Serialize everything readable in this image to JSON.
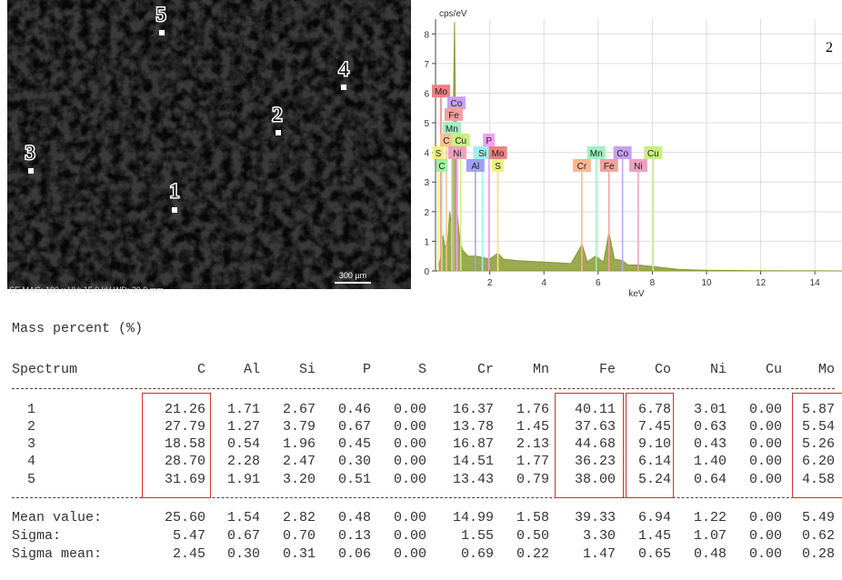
{
  "micrograph": {
    "points": [
      "5",
      "4",
      "2",
      "3",
      "1"
    ],
    "info": "SE MAG: 100 x HV: 15.0 kV WD: 30.0 mm",
    "scale_bar": "300 µm"
  },
  "chart_data": {
    "type": "area",
    "annotation": "2",
    "y_label": "cps/eV",
    "x_label": "keV",
    "x": [
      0.1,
      0.2,
      0.28,
      0.35,
      0.45,
      0.52,
      0.6,
      0.7,
      0.75,
      0.8,
      0.9,
      1.0,
      1.2,
      1.5,
      1.75,
      2.0,
      2.3,
      2.5,
      3,
      4,
      5,
      5.41,
      5.6,
      5.9,
      6.2,
      6.4,
      6.6,
      6.9,
      7.1,
      7.5,
      8,
      8.5,
      9,
      10,
      12,
      15
    ],
    "values": [
      0.1,
      0.5,
      1.2,
      0.8,
      1.0,
      2.0,
      1.5,
      8.4,
      3.5,
      2.0,
      1.0,
      0.7,
      0.5,
      0.5,
      0.45,
      0.4,
      0.6,
      0.4,
      0.35,
      0.3,
      0.25,
      0.9,
      0.3,
      0.5,
      0.3,
      1.3,
      0.4,
      0.35,
      0.2,
      0.2,
      0.15,
      0.1,
      0.05,
      0.02,
      0.01,
      0
    ],
    "color": "#8a9a30",
    "xlim": [
      0,
      15
    ],
    "ylim": [
      0,
      8.5
    ],
    "xticks": [
      2,
      4,
      6,
      8,
      10,
      12,
      14
    ],
    "yticks": [
      0,
      1,
      2,
      3,
      4,
      5,
      6,
      7,
      8
    ],
    "grid": true,
    "peak_labels": [
      {
        "label": "Mo",
        "x": 0.2,
        "y": 6.07,
        "color": "#f08080"
      },
      {
        "label": "Co",
        "x": 0.77,
        "y": 5.67,
        "color": "#c8a0f0"
      },
      {
        "label": "Fe",
        "x": 0.67,
        "y": 5.28,
        "color": "#f4a0a0"
      },
      {
        "label": "Mn",
        "x": 0.6,
        "y": 4.82,
        "color": "#a0f0c0"
      },
      {
        "label": "C",
        "x": 0.4,
        "y": 4.42,
        "color": "#f8c090"
      },
      {
        "label": "Cu",
        "x": 0.93,
        "y": 4.42,
        "color": "#c8f080"
      },
      {
        "label": "P",
        "x": 1.97,
        "y": 4.42,
        "color": "#f0a0f0"
      },
      {
        "label": "S",
        "x": 0.1,
        "y": 3.99,
        "color": "#f0f080"
      },
      {
        "label": "Ni",
        "x": 0.8,
        "y": 3.99,
        "color": "#f0a0c0"
      },
      {
        "label": "Si",
        "x": 1.73,
        "y": 3.99,
        "color": "#a0f0f0"
      },
      {
        "label": "Mo",
        "x": 2.3,
        "y": 3.99,
        "color": "#f08080"
      },
      {
        "label": "C",
        "x": 0.23,
        "y": 3.56,
        "color": "#a0f0a0"
      },
      {
        "label": "Al",
        "x": 1.47,
        "y": 3.56,
        "color": "#a0a0f0"
      },
      {
        "label": "S",
        "x": 2.3,
        "y": 3.56,
        "color": "#f0f080"
      },
      {
        "label": "Mn",
        "x": 5.93,
        "y": 3.99,
        "color": "#a0f0c0"
      },
      {
        "label": "Co",
        "x": 6.9,
        "y": 3.99,
        "color": "#c8a0f0"
      },
      {
        "label": "Cu",
        "x": 8.03,
        "y": 3.99,
        "color": "#c8f080"
      },
      {
        "label": "Cr",
        "x": 5.4,
        "y": 3.56,
        "color": "#f8b890"
      },
      {
        "label": "Fe",
        "x": 6.4,
        "y": 3.56,
        "color": "#f4a0a0"
      },
      {
        "label": "Ni",
        "x": 7.48,
        "y": 3.56,
        "color": "#f0a0c0"
      }
    ]
  },
  "table": {
    "caption": "Mass percent (%)",
    "columns": [
      "Spectrum",
      "C",
      "Al",
      "Si",
      "P",
      "S",
      "Cr",
      "Mn",
      "Fe",
      "Co",
      "Ni",
      "Cu",
      "Mo"
    ],
    "rows": [
      [
        "1",
        "21.26",
        "1.71",
        "2.67",
        "0.46",
        "0.00",
        "16.37",
        "1.76",
        "40.11",
        "6.78",
        "3.01",
        "0.00",
        "5.87"
      ],
      [
        "2",
        "27.79",
        "1.27",
        "3.79",
        "0.67",
        "0.00",
        "13.78",
        "1.45",
        "37.63",
        "7.45",
        "0.63",
        "0.00",
        "5.54"
      ],
      [
        "3",
        "18.58",
        "0.54",
        "1.96",
        "0.45",
        "0.00",
        "16.87",
        "2.13",
        "44.68",
        "9.10",
        "0.43",
        "0.00",
        "5.26"
      ],
      [
        "4",
        "28.70",
        "2.28",
        "2.47",
        "0.30",
        "0.00",
        "14.51",
        "1.77",
        "36.23",
        "6.14",
        "1.40",
        "0.00",
        "6.20"
      ],
      [
        "5",
        "31.69",
        "1.91",
        "3.20",
        "0.51",
        "0.00",
        "13.43",
        "0.79",
        "38.00",
        "5.24",
        "0.64",
        "0.00",
        "4.58"
      ]
    ],
    "summary": [
      [
        "Mean value:",
        "25.60",
        "1.54",
        "2.82",
        "0.48",
        "0.00",
        "14.99",
        "1.58",
        "39.33",
        "6.94",
        "1.22",
        "0.00",
        "5.49"
      ],
      [
        "Sigma:",
        "5.47",
        "0.67",
        "0.70",
        "0.13",
        "0.00",
        "1.55",
        "0.50",
        "3.30",
        "1.45",
        "1.07",
        "0.00",
        "0.62"
      ],
      [
        "Sigma mean:",
        "2.45",
        "0.30",
        "0.31",
        "0.06",
        "0.00",
        "0.69",
        "0.22",
        "1.47",
        "0.65",
        "0.48",
        "0.00",
        "0.28"
      ]
    ]
  }
}
